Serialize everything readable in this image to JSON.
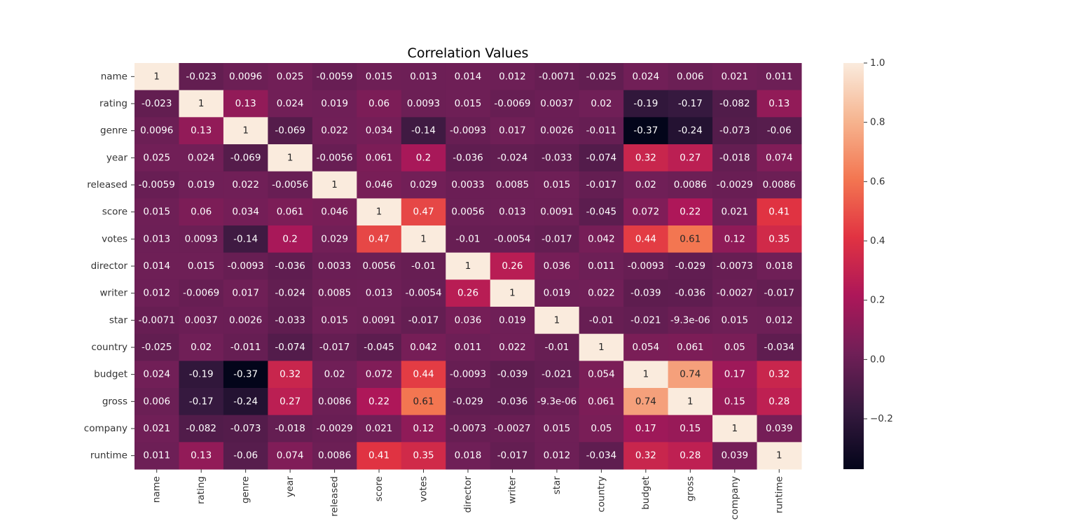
{
  "chart_data": {
    "type": "heatmap",
    "title": "Correlation Values",
    "xlabel": "",
    "ylabel": "",
    "labels": [
      "name",
      "rating",
      "genre",
      "year",
      "released",
      "score",
      "votes",
      "director",
      "writer",
      "star",
      "country",
      "budget",
      "gross",
      "company",
      "runtime"
    ],
    "annotations": [
      [
        "1",
        "-0.023",
        "0.0096",
        "0.025",
        "-0.0059",
        "0.015",
        "0.013",
        "0.014",
        "0.012",
        "-0.0071",
        "-0.025",
        "0.024",
        "0.006",
        "0.021",
        "0.011"
      ],
      [
        "-0.023",
        "1",
        "0.13",
        "0.024",
        "0.019",
        "0.06",
        "0.0093",
        "0.015",
        "-0.0069",
        "0.0037",
        "0.02",
        "-0.19",
        "-0.17",
        "-0.082",
        "0.13"
      ],
      [
        "0.0096",
        "0.13",
        "1",
        "-0.069",
        "0.022",
        "0.034",
        "-0.14",
        "-0.0093",
        "0.017",
        "0.0026",
        "-0.011",
        "-0.37",
        "-0.24",
        "-0.073",
        "-0.06"
      ],
      [
        "0.025",
        "0.024",
        "-0.069",
        "1",
        "-0.0056",
        "0.061",
        "0.2",
        "-0.036",
        "-0.024",
        "-0.033",
        "-0.074",
        "0.32",
        "0.27",
        "-0.018",
        "0.074"
      ],
      [
        "-0.0059",
        "0.019",
        "0.022",
        "-0.0056",
        "1",
        "0.046",
        "0.029",
        "0.0033",
        "0.0085",
        "0.015",
        "-0.017",
        "0.02",
        "0.0086",
        "-0.0029",
        "0.0086"
      ],
      [
        "0.015",
        "0.06",
        "0.034",
        "0.061",
        "0.046",
        "1",
        "0.47",
        "0.0056",
        "0.013",
        "0.0091",
        "-0.045",
        "0.072",
        "0.22",
        "0.021",
        "0.41"
      ],
      [
        "0.013",
        "0.0093",
        "-0.14",
        "0.2",
        "0.029",
        "0.47",
        "1",
        "-0.01",
        "-0.0054",
        "-0.017",
        "0.042",
        "0.44",
        "0.61",
        "0.12",
        "0.35"
      ],
      [
        "0.014",
        "0.015",
        "-0.0093",
        "-0.036",
        "0.0033",
        "0.0056",
        "-0.01",
        "1",
        "0.26",
        "0.036",
        "0.011",
        "-0.0093",
        "-0.029",
        "-0.0073",
        "0.018"
      ],
      [
        "0.012",
        "-0.0069",
        "0.017",
        "-0.024",
        "0.0085",
        "0.013",
        "-0.0054",
        "0.26",
        "1",
        "0.019",
        "0.022",
        "-0.039",
        "-0.036",
        "-0.0027",
        "-0.017"
      ],
      [
        "-0.0071",
        "0.0037",
        "0.0026",
        "-0.033",
        "0.015",
        "0.0091",
        "-0.017",
        "0.036",
        "0.019",
        "1",
        "-0.01",
        "-0.021",
        "-9.3e-06",
        "0.015",
        "0.012"
      ],
      [
        "-0.025",
        "0.02",
        "-0.011",
        "-0.074",
        "-0.017",
        "-0.045",
        "0.042",
        "0.011",
        "0.022",
        "-0.01",
        "1",
        "0.054",
        "0.061",
        "0.05",
        "-0.034"
      ],
      [
        "0.024",
        "-0.19",
        "-0.37",
        "0.32",
        "0.02",
        "0.072",
        "0.44",
        "-0.0093",
        "-0.039",
        "-0.021",
        "0.054",
        "1",
        "0.74",
        "0.17",
        "0.32"
      ],
      [
        "0.006",
        "-0.17",
        "-0.24",
        "0.27",
        "0.0086",
        "0.22",
        "0.61",
        "-0.029",
        "-0.036",
        "-9.3e-06",
        "0.061",
        "0.74",
        "1",
        "0.15",
        "0.28"
      ],
      [
        "0.021",
        "-0.082",
        "-0.073",
        "-0.018",
        "-0.0029",
        "0.021",
        "0.12",
        "-0.0073",
        "-0.0027",
        "0.015",
        "0.05",
        "0.17",
        "0.15",
        "1",
        "0.039"
      ],
      [
        "0.011",
        "0.13",
        "-0.06",
        "0.074",
        "0.0086",
        "0.41",
        "0.35",
        "0.018",
        "-0.017",
        "0.012",
        "-0.034",
        "0.32",
        "0.28",
        "0.039",
        "1"
      ]
    ],
    "colorbar": {
      "vmin": -0.37,
      "vmax": 1.0,
      "ticks": [
        1.0,
        0.8,
        0.6,
        0.4,
        0.2,
        0.0,
        -0.2
      ],
      "tick_labels": [
        "1.0",
        "0.8",
        "0.6",
        "0.4",
        "0.2",
        "0.0",
        "−0.2"
      ]
    },
    "colormap": "rocket",
    "colormap_stops": [
      "#03051a",
      "#35193e",
      "#701f57",
      "#ad1759",
      "#e13342",
      "#f37651",
      "#f6b48f",
      "#faebdd"
    ]
  }
}
